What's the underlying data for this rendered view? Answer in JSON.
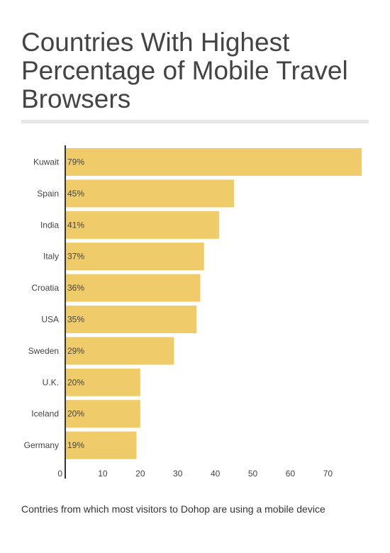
{
  "header": {
    "title": "Countries With Highest Percentage of Mobile Travel Browsers"
  },
  "caption": "Contries from which most visitors to Dohop are using a mobile device",
  "colors": {
    "bar": "#f0cb69",
    "axis": "#333333",
    "text": "#444444"
  },
  "chart_data": {
    "type": "bar",
    "orientation": "horizontal",
    "categories": [
      "Kuwait",
      "Spain",
      "India",
      "Italy",
      "Croatia",
      "USA",
      "Sweden",
      "U.K.",
      "Iceland",
      "Germany"
    ],
    "values": [
      79,
      45,
      41,
      37,
      36,
      35,
      29,
      20,
      20,
      19
    ],
    "data_labels": [
      "79%",
      "45%",
      "41%",
      "37%",
      "36%",
      "35%",
      "29%",
      "20%",
      "20%",
      "19%"
    ],
    "xticks": [
      0,
      10,
      20,
      30,
      40,
      50,
      60,
      70
    ],
    "xlim": [
      0,
      79
    ],
    "grid": false,
    "legend": "none"
  }
}
